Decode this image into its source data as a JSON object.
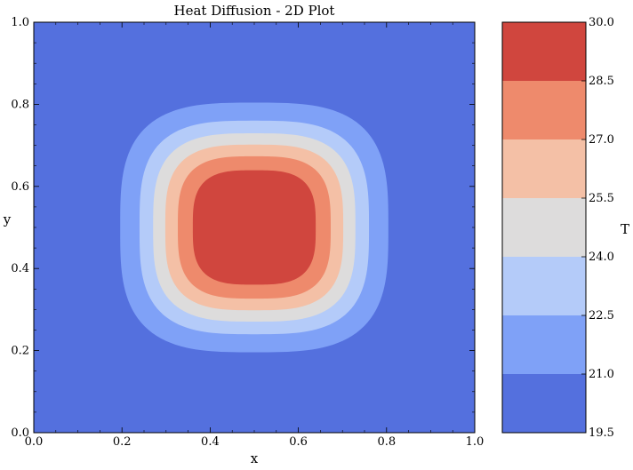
{
  "chart_data": {
    "type": "heatmap",
    "title": "Heat Diffusion - 2D Plot",
    "xlabel": "x",
    "ylabel": "y",
    "xlim": [
      0.0,
      1.0
    ],
    "ylim": [
      0.0,
      1.0
    ],
    "x_ticks": [
      "0.0",
      "0.2",
      "0.4",
      "0.6",
      "0.8",
      "1.0"
    ],
    "y_ticks": [
      "0.0",
      "0.2",
      "0.4",
      "0.6",
      "0.8",
      "1.0"
    ],
    "grid": false,
    "field": {
      "min": 20.0,
      "peak": 30.0,
      "center": [
        0.5,
        0.5
      ]
    },
    "levels": [
      19.5,
      21.0,
      22.5,
      24.0,
      25.5,
      27.0,
      28.5,
      30.0
    ],
    "level_colors": [
      "#5470de",
      "#7fa1f7",
      "#b4cbf9",
      "#dddcdc",
      "#f4c0a6",
      "#ee8a6c",
      "#d0463e"
    ],
    "colorbar": {
      "label": "T",
      "ticks": [
        "19.5",
        "21.0",
        "22.5",
        "24.0",
        "25.5",
        "27.0",
        "28.5",
        "30.0"
      ]
    }
  }
}
